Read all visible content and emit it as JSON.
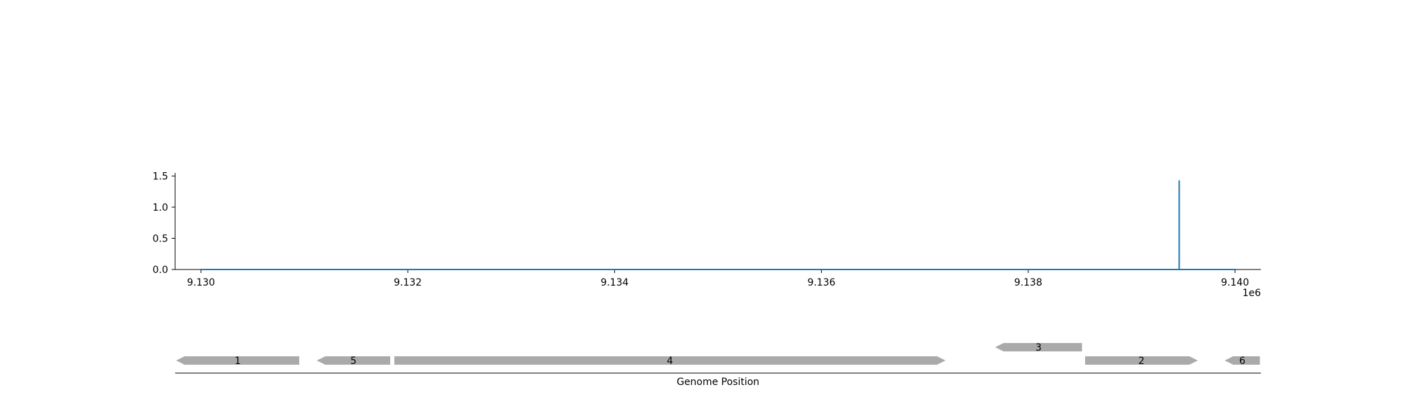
{
  "chart_data": [
    {
      "type": "line",
      "title": "",
      "xlabel": "",
      "ylabel": "",
      "x_offset_label": "1e6",
      "xlim": [
        9.12975,
        9.14025
      ],
      "ylim": [
        0,
        1.55
      ],
      "x_ticks": [
        9.13,
        9.132,
        9.134,
        9.136,
        9.138,
        9.14
      ],
      "x_tick_labels": [
        "9.130",
        "9.132",
        "9.134",
        "9.136",
        "9.138",
        "9.140"
      ],
      "y_ticks": [
        0.0,
        0.5,
        1.0,
        1.5
      ],
      "y_tick_labels": [
        "0.0",
        "0.5",
        "1.0",
        "1.5"
      ],
      "grid": false,
      "series": [
        {
          "color": "#1f77b4",
          "x": [
            9.13,
            9.13946,
            9.13946,
            9.13946,
            9.13946,
            9.14
          ],
          "y": [
            0.0,
            0.0,
            1.43,
            1.43,
            0.0,
            0.0
          ]
        }
      ]
    },
    {
      "type": "gene-track",
      "xlabel": "Genome Position",
      "gene_color": "#aaaaaa",
      "genes": [
        {
          "label": "1",
          "start": 9.12976,
          "end": 9.13095,
          "strand": "-",
          "row": 0
        },
        {
          "label": "5",
          "start": 9.13112,
          "end": 9.13183,
          "strand": "-",
          "row": 0
        },
        {
          "label": "4",
          "start": 9.13187,
          "end": 9.1372,
          "strand": "+",
          "row": 0
        },
        {
          "label": "3",
          "start": 9.13768,
          "end": 9.13852,
          "strand": "-",
          "row": 1
        },
        {
          "label": "2",
          "start": 9.13855,
          "end": 9.13964,
          "strand": "+",
          "row": 0
        },
        {
          "label": "6",
          "start": 9.1399,
          "end": 9.14024,
          "strand": "-",
          "row": 0
        }
      ]
    }
  ]
}
